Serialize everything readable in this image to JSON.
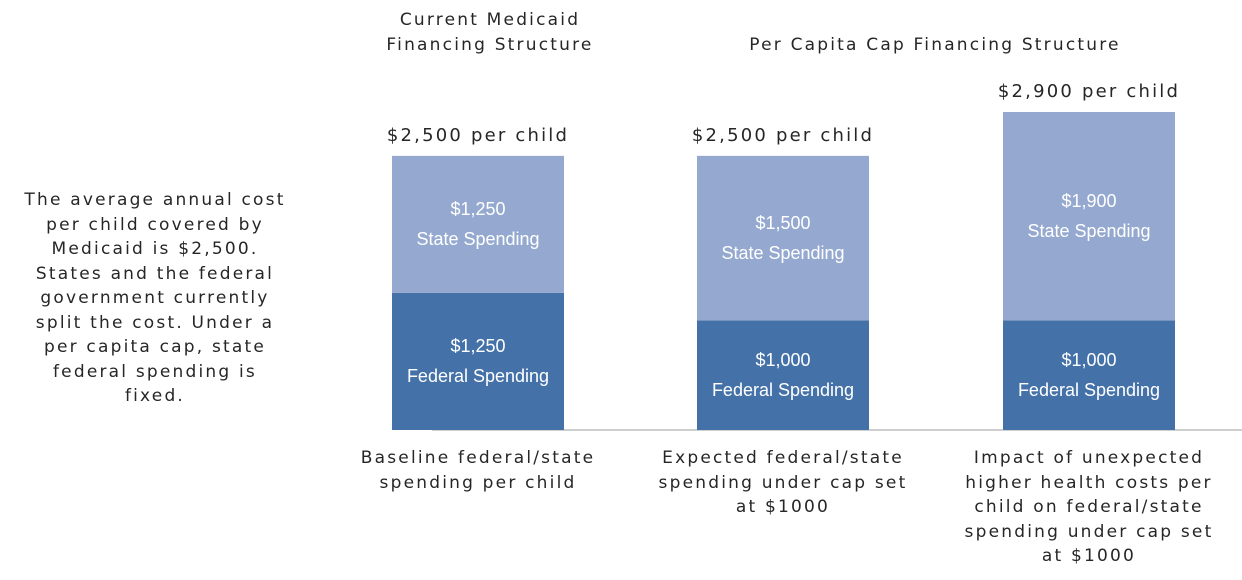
{
  "chart_data": {
    "type": "bar",
    "stacked": true,
    "group_titles": [
      "Current Medicaid\nFinancing Structure",
      "Per Capita Cap Financing Structure"
    ],
    "note": "The average annual cost\nper child covered by\nMedicaid is $2,500.\nStates and the federal\ngovernment currently\nsplit the cost. Under a\nper capita cap, state\nfederal spending is\nfixed.",
    "categories": [
      "Baseline federal/state\nspending per child",
      "Expected federal/state\nspending under cap set\nat $1000",
      "Impact of unexpected\nhigher health costs per\nchild on federal/state\nspending under cap set\nat $1000"
    ],
    "annotations": [
      "$2,500 per child",
      "$2,500 per child",
      "$2,900 per child"
    ],
    "ylim": [
      0,
      2900
    ],
    "series": [
      {
        "name": "Federal Spending",
        "color": "#4472a8",
        "values": [
          1250,
          1000,
          1000
        ],
        "value_labels": [
          "$1,250",
          "$1,000",
          "$1,000"
        ]
      },
      {
        "name": "State Spending",
        "color": "#95a9d0",
        "values": [
          1250,
          1500,
          1900
        ],
        "value_labels": [
          "$1,250",
          "$1,500",
          "$1,900"
        ]
      }
    ]
  }
}
